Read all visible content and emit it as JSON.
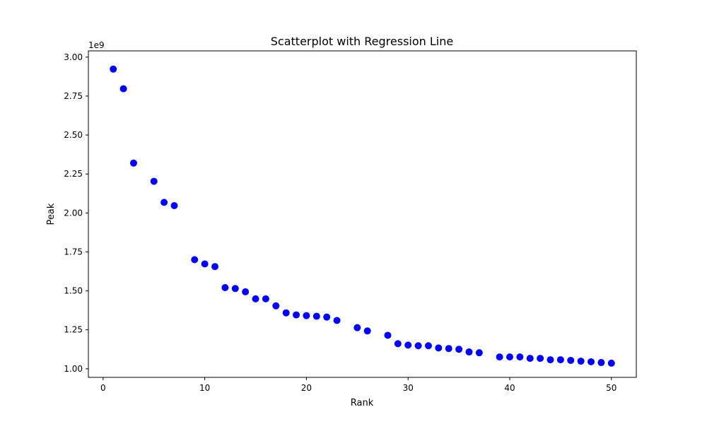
{
  "chart_data": {
    "type": "scatter",
    "title": "Scatterplot with Regression Line",
    "xlabel": "Rank",
    "ylabel": "Peak",
    "y_offset_label": "1e9",
    "xlim": [
      -1.45,
      52.45
    ],
    "ylim": [
      0.945,
      3.04
    ],
    "xticks": [
      0,
      10,
      20,
      30,
      40,
      50
    ],
    "xtick_labels": [
      "0",
      "10",
      "20",
      "30",
      "40",
      "50"
    ],
    "yticks": [
      1.0,
      1.25,
      1.5,
      1.75,
      2.0,
      2.25,
      2.5,
      2.75,
      3.0
    ],
    "ytick_labels": [
      "1.00",
      "1.25",
      "1.50",
      "1.75",
      "2.00",
      "2.25",
      "2.50",
      "2.75",
      "3.00"
    ],
    "grid": false,
    "marker_color": "#0000ff",
    "x": [
      1,
      2,
      3,
      5,
      6,
      7,
      9,
      10,
      11,
      12,
      13,
      14,
      15,
      16,
      17,
      18,
      19,
      20,
      21,
      22,
      23,
      25,
      26,
      28,
      29,
      30,
      31,
      32,
      33,
      34,
      35,
      36,
      37,
      39,
      40,
      41,
      42,
      43,
      44,
      45,
      46,
      47,
      48,
      49,
      50
    ],
    "y": [
      2.923,
      2.797,
      2.32,
      2.203,
      2.068,
      2.047,
      1.7,
      1.673,
      1.656,
      1.521,
      1.515,
      1.494,
      1.449,
      1.449,
      1.404,
      1.359,
      1.346,
      1.341,
      1.337,
      1.332,
      1.31,
      1.264,
      1.243,
      1.215,
      1.161,
      1.152,
      1.148,
      1.148,
      1.134,
      1.13,
      1.125,
      1.108,
      1.103,
      1.076,
      1.076,
      1.076,
      1.067,
      1.067,
      1.058,
      1.058,
      1.054,
      1.049,
      1.045,
      1.04,
      1.036
    ]
  }
}
